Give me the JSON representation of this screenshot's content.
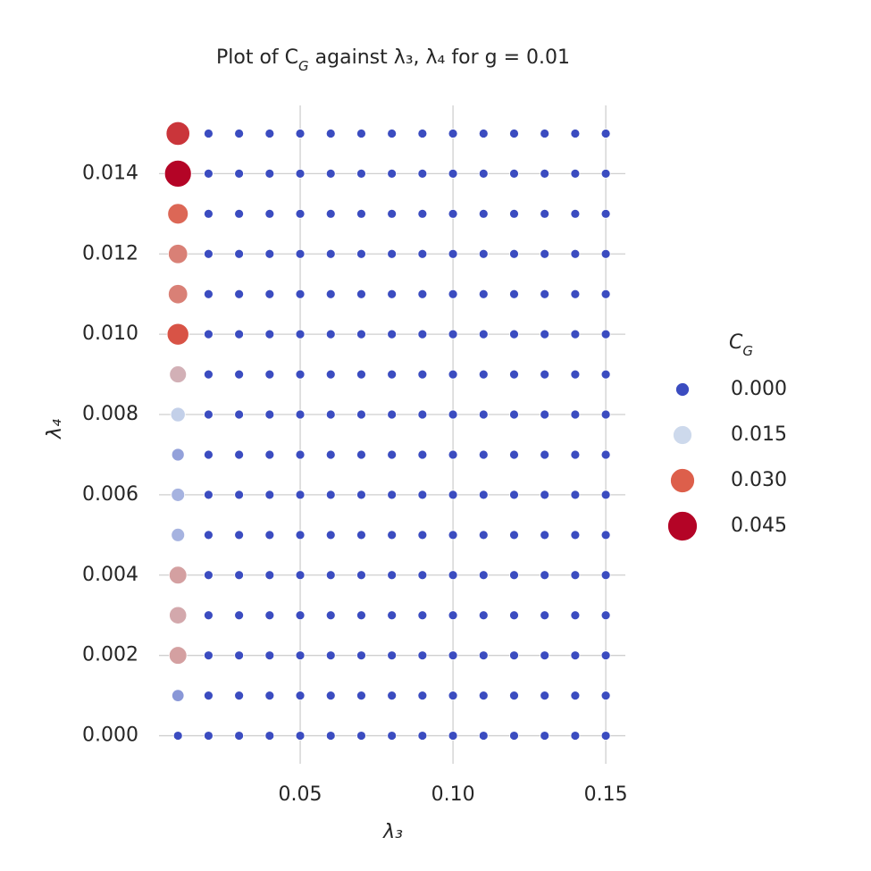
{
  "chart_data": {
    "type": "bubble_grid",
    "title": "Plot of C_G against λ₃, λ₄ for g = 0.01",
    "xlabel": "λ₃",
    "ylabel": "λ₄",
    "x": [
      0.01,
      0.02,
      0.03,
      0.04,
      0.05,
      0.06,
      0.07,
      0.08,
      0.09,
      0.1,
      0.11,
      0.12,
      0.13,
      0.14,
      0.15
    ],
    "y": [
      0,
      0.001,
      0.002,
      0.003,
      0.004,
      0.005,
      0.006,
      0.007,
      0.008,
      0.009,
      0.01,
      0.011,
      0.012,
      0.013,
      0.014,
      0.015
    ],
    "values": [
      [
        0,
        0,
        0,
        0,
        0,
        0,
        0,
        0,
        0,
        0,
        0,
        0,
        0,
        0,
        0
      ],
      [
        0.008,
        0,
        0,
        0,
        0,
        0,
        0,
        0,
        0,
        0,
        0,
        0,
        0,
        0,
        0
      ],
      [
        0.022,
        0,
        0,
        0,
        0,
        0,
        0,
        0,
        0,
        0,
        0,
        0,
        0,
        0,
        0
      ],
      [
        0.021,
        0,
        0,
        0,
        0,
        0,
        0,
        0,
        0,
        0,
        0,
        0,
        0,
        0,
        0
      ],
      [
        0.022,
        0,
        0,
        0,
        0,
        0,
        0,
        0,
        0,
        0,
        0,
        0,
        0,
        0,
        0
      ],
      [
        0.011,
        0,
        0,
        0,
        0,
        0,
        0,
        0,
        0,
        0,
        0,
        0,
        0,
        0,
        0
      ],
      [
        0.011,
        0,
        0,
        0,
        0,
        0,
        0,
        0,
        0,
        0,
        0,
        0,
        0,
        0,
        0
      ],
      [
        0.009,
        0,
        0,
        0,
        0,
        0,
        0,
        0,
        0,
        0,
        0,
        0,
        0,
        0,
        0
      ],
      [
        0.014,
        0,
        0,
        0,
        0,
        0,
        0,
        0,
        0,
        0,
        0,
        0,
        0,
        0,
        0
      ],
      [
        0.02,
        0,
        0,
        0,
        0,
        0,
        0,
        0,
        0,
        0,
        0,
        0,
        0,
        0,
        0
      ],
      [
        0.032,
        0,
        0,
        0,
        0,
        0,
        0,
        0,
        0,
        0,
        0,
        0,
        0,
        0,
        0
      ],
      [
        0.026,
        0,
        0,
        0,
        0,
        0,
        0,
        0,
        0,
        0,
        0,
        0,
        0,
        0,
        0
      ],
      [
        0.026,
        0,
        0,
        0,
        0,
        0,
        0,
        0,
        0,
        0,
        0,
        0,
        0,
        0,
        0
      ],
      [
        0.029,
        0,
        0,
        0,
        0,
        0,
        0,
        0,
        0,
        0,
        0,
        0,
        0,
        0,
        0
      ],
      [
        0.045,
        0,
        0,
        0,
        0,
        0,
        0,
        0,
        0,
        0,
        0,
        0,
        0,
        0,
        0
      ],
      [
        0.037,
        0,
        0,
        0,
        0,
        0,
        0,
        0,
        0,
        0,
        0,
        0,
        0,
        0,
        0
      ]
    ],
    "xlim": [
      0.0038,
      0.1564
    ],
    "ylim": [
      -0.0007,
      0.0157
    ],
    "xticks": [
      0.05,
      {
        "value": 0.1,
        "label": "0.10"
      },
      {
        "value": 0.15,
        "label": "0.15"
      }
    ],
    "yticks": [
      {
        "value": 0,
        "label": "0.000"
      },
      {
        "value": 0.002,
        "label": "0.002"
      },
      {
        "value": 0.004,
        "label": "0.004"
      },
      {
        "value": 0.006,
        "label": "0.006"
      },
      {
        "value": 0.008,
        "label": "0.008"
      },
      {
        "value": 0.01,
        "label": "0.010"
      },
      {
        "value": 0.012,
        "label": "0.012"
      },
      {
        "value": 0.014,
        "label": "0.014"
      }
    ],
    "grid": true,
    "legend": {
      "title": "C_G",
      "position": "right",
      "entries": [
        {
          "value": 0,
          "label": "0.000",
          "color": "#3b4cc0"
        },
        {
          "value": 0.015,
          "label": "0.015",
          "color": "#cdd9ec"
        },
        {
          "value": 0.03,
          "label": "0.030",
          "color": "#dd5f4b"
        },
        {
          "value": 0.045,
          "label": "0.045",
          "color": "#b40426"
        }
      ]
    }
  }
}
